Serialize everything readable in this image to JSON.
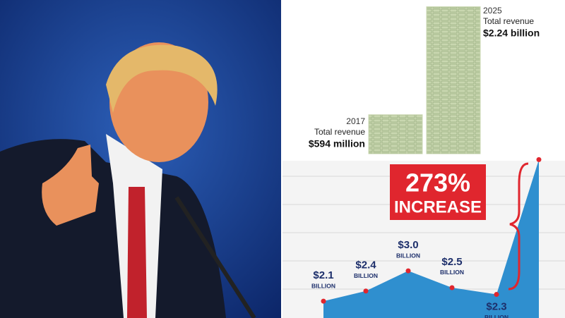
{
  "chart_data": [
    {
      "type": "stack",
      "categories": [
        "2017",
        "2025"
      ],
      "subtitles": [
        "Total revenue",
        "Total revenue"
      ],
      "values": [
        594,
        2240
      ],
      "value_labels": [
        "$594 million",
        "$2.24 billion"
      ],
      "ylim": [
        0,
        2300
      ],
      "color": "#c9d7b0"
    },
    {
      "type": "area",
      "values": [
        2.1,
        2.4,
        3.0,
        2.5,
        2.3,
        6.3
      ],
      "value_labels": [
        "$2.1",
        "$2.4",
        "$3.0",
        "$2.5",
        "$2.3",
        null
      ],
      "unit_label": "BILLION",
      "annotation": [
        "273%",
        "INCREASE"
      ],
      "ylim": [
        1.6,
        6.4
      ],
      "color": "#2f8fcf",
      "point_color": "#e0262e"
    }
  ]
}
